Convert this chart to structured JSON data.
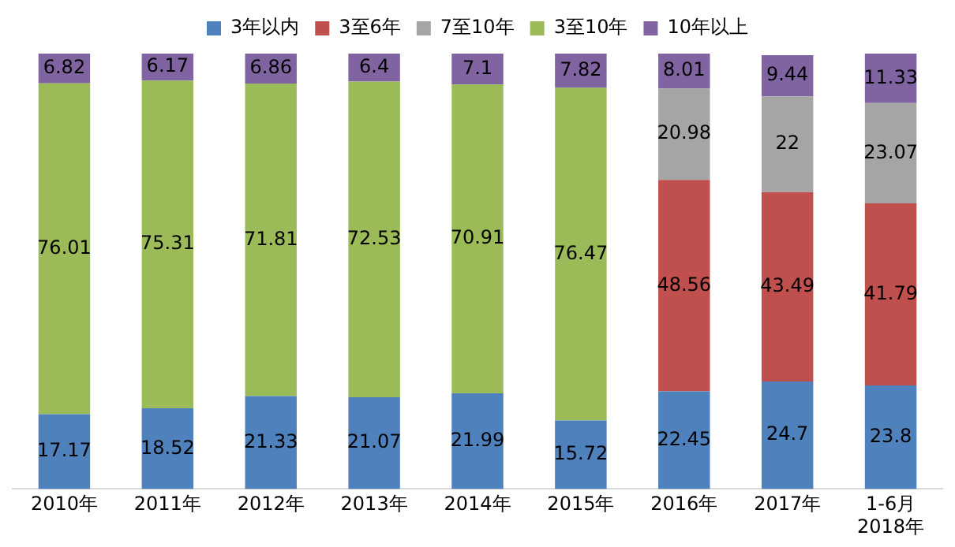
{
  "chart_data": {
    "type": "bar",
    "stacked": true,
    "legend": "top",
    "data_labels": true,
    "grid": false,
    "tick_labels": "x",
    "categories": [
      "2010年",
      "2011年",
      "2012年",
      "2013年",
      "2014年",
      "2015年",
      "2016年",
      "2017年",
      "1-6月 2018年"
    ],
    "series": [
      {
        "name": "3年以内",
        "color": "#4f81bd",
        "values": [
          17.17,
          18.52,
          21.33,
          21.07,
          21.99,
          15.72,
          22.45,
          24.7,
          23.8
        ]
      },
      {
        "name": "3至6年",
        "color": "#c0504d",
        "values": [
          null,
          null,
          null,
          null,
          null,
          null,
          48.56,
          43.49,
          41.79
        ]
      },
      {
        "name": "7至10年",
        "color": "#a5a5a5",
        "values": [
          null,
          null,
          null,
          null,
          null,
          null,
          20.98,
          22,
          23.07
        ]
      },
      {
        "name": "3至10年",
        "color": "#9bbb59",
        "values": [
          76.01,
          75.31,
          71.81,
          72.53,
          70.91,
          76.47,
          null,
          null,
          null
        ]
      },
      {
        "name": "10年以上",
        "color": "#8064a2",
        "values": [
          6.82,
          6.17,
          6.86,
          6.4,
          7.1,
          7.82,
          8.01,
          9.44,
          11.33
        ]
      }
    ]
  }
}
